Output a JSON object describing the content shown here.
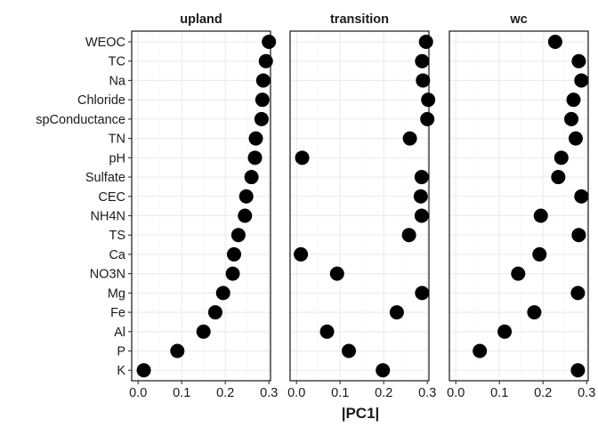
{
  "chart_data": {
    "type": "scatter",
    "xlabel": "|PC1|",
    "ylabel": "",
    "xlim": [
      0,
      0.3
    ],
    "xticks": [
      "0.0",
      "0.1",
      "0.2",
      "0.3"
    ],
    "grid": true,
    "categories": [
      "WEOC",
      "TC",
      "Na",
      "Chloride",
      "spConductance",
      "TN",
      "pH",
      "Sulfate",
      "CEC",
      "NH4N",
      "TS",
      "Ca",
      "NO3N",
      "Mg",
      "Fe",
      "Al",
      "P",
      "K"
    ],
    "facets": [
      {
        "title": "upland",
        "values": [
          0.3,
          0.293,
          0.287,
          0.285,
          0.283,
          0.27,
          0.268,
          0.26,
          0.248,
          0.245,
          0.23,
          0.22,
          0.217,
          0.195,
          0.177,
          0.15,
          0.09,
          0.013
        ]
      },
      {
        "title": "transition",
        "values": [
          0.297,
          0.288,
          0.29,
          0.302,
          0.3,
          0.26,
          0.013,
          0.287,
          0.285,
          0.287,
          0.258,
          0.01,
          0.093,
          0.288,
          0.23,
          0.07,
          0.12,
          0.198
        ]
      },
      {
        "title": "wc",
        "values": [
          0.228,
          0.282,
          0.288,
          0.27,
          0.265,
          0.275,
          0.242,
          0.235,
          0.288,
          0.195,
          0.282,
          0.192,
          0.143,
          0.28,
          0.18,
          0.112,
          0.055,
          0.28
        ]
      }
    ]
  }
}
